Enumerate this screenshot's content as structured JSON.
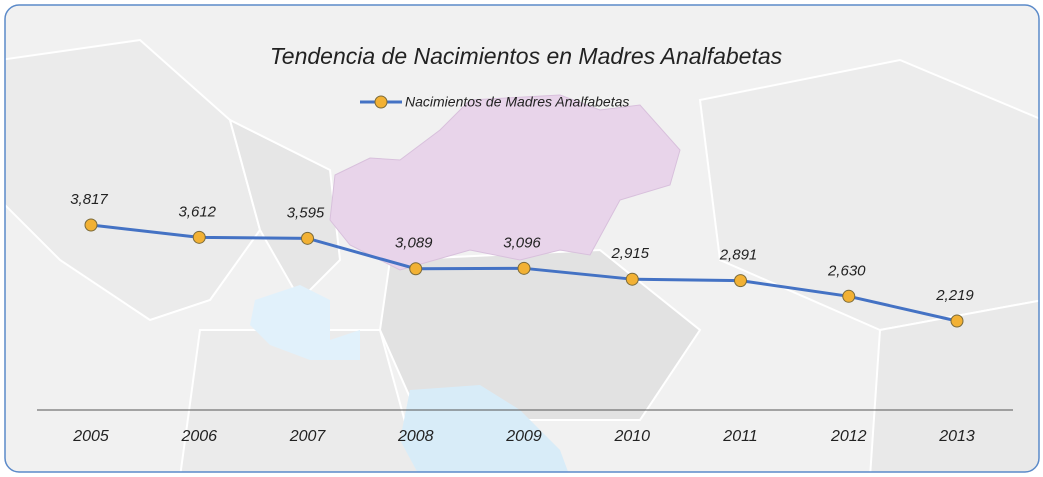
{
  "chart_data": {
    "type": "line",
    "title": "Tendencia de Nacimientos en Madres Analfabetas",
    "categories": [
      "2005",
      "2006",
      "2007",
      "2008",
      "2009",
      "2010",
      "2011",
      "2012",
      "2013"
    ],
    "series": [
      {
        "name": "Nacimientos de Madres Analfabetas",
        "color": "#4472c4",
        "marker_color": "#f2b134",
        "values": [
          3817,
          3612,
          3595,
          3089,
          3096,
          2915,
          2891,
          2630,
          2219
        ],
        "value_labels": [
          "3,817",
          "3,612",
          "3,595",
          "3,089",
          "3,096",
          "2,915",
          "2,891",
          "2,630",
          "2,219"
        ]
      }
    ],
    "legend": "top"
  }
}
